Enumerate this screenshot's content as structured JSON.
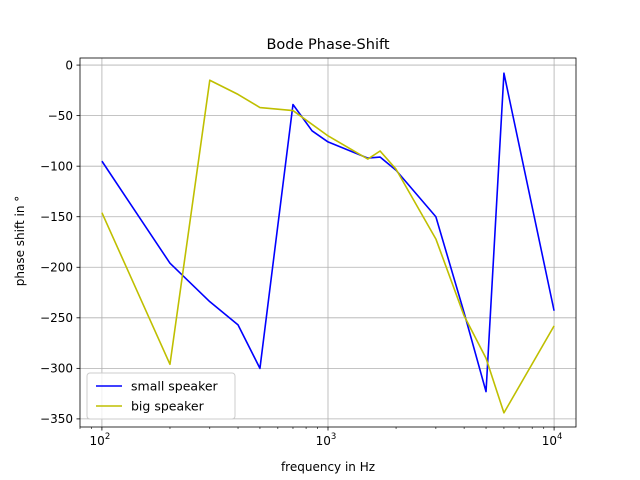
{
  "chart_data": {
    "type": "line",
    "title": "Bode Phase-Shift",
    "xlabel": "frequency in Hz",
    "ylabel": "phase shift in °",
    "x_scale": "log",
    "xlim": [
      80,
      12500
    ],
    "ylim": [
      -358,
      7
    ],
    "grid": true,
    "legend_position": "lower-left",
    "x_ticks": [
      {
        "value": 100,
        "base": "10",
        "exp": "2"
      },
      {
        "value": 1000,
        "base": "10",
        "exp": "3"
      },
      {
        "value": 10000,
        "base": "10",
        "exp": "4"
      }
    ],
    "y_ticks": [
      {
        "value": 0,
        "label": "0"
      },
      {
        "value": -50,
        "label": "−50"
      },
      {
        "value": -100,
        "label": "−100"
      },
      {
        "value": -150,
        "label": "−150"
      },
      {
        "value": -200,
        "label": "−200"
      },
      {
        "value": -250,
        "label": "−250"
      },
      {
        "value": -300,
        "label": "−300"
      },
      {
        "value": -350,
        "label": "−350"
      }
    ],
    "series": [
      {
        "name": "small speaker",
        "color": "#0000ff",
        "points": [
          [
            100,
            -95
          ],
          [
            200,
            -196
          ],
          [
            300,
            -234
          ],
          [
            400,
            -257
          ],
          [
            500,
            -300
          ],
          [
            700,
            -39
          ],
          [
            850,
            -65
          ],
          [
            1000,
            -76
          ],
          [
            1500,
            -92
          ],
          [
            1700,
            -91
          ],
          [
            2000,
            -104
          ],
          [
            3000,
            -150
          ],
          [
            4000,
            -245
          ],
          [
            5000,
            -323
          ],
          [
            6000,
            -8
          ],
          [
            10000,
            -243
          ]
        ]
      },
      {
        "name": "big speaker",
        "color": "#bfbf00",
        "points": [
          [
            100,
            -146
          ],
          [
            200,
            -296
          ],
          [
            300,
            -15
          ],
          [
            400,
            -29
          ],
          [
            500,
            -42
          ],
          [
            700,
            -45
          ],
          [
            1000,
            -70
          ],
          [
            1500,
            -93
          ],
          [
            1700,
            -85
          ],
          [
            2000,
            -103
          ],
          [
            3000,
            -172
          ],
          [
            4000,
            -248
          ],
          [
            5000,
            -290
          ],
          [
            6000,
            -344
          ],
          [
            10000,
            -258
          ]
        ]
      }
    ]
  }
}
